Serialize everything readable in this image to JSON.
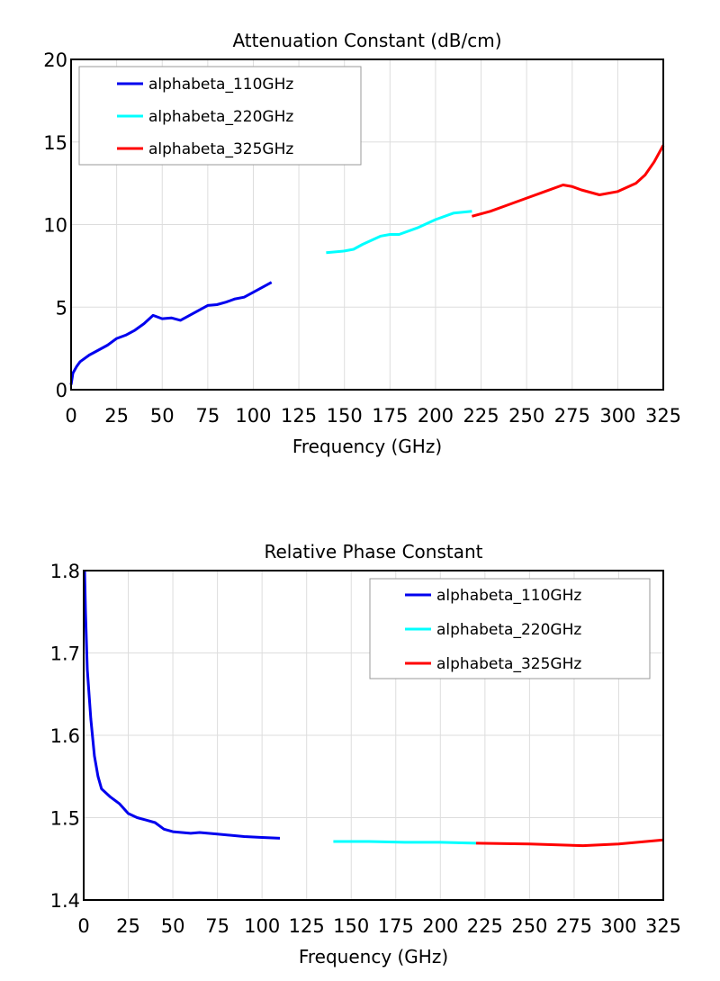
{
  "chart_data": [
    {
      "type": "line",
      "title": "Attenuation Constant (dB/cm)",
      "xlabel": "Frequency (GHz)",
      "ylabel": "",
      "xlim": [
        0,
        325
      ],
      "ylim": [
        0,
        20
      ],
      "xticks": [
        0,
        25,
        50,
        75,
        100,
        125,
        150,
        175,
        200,
        225,
        250,
        275,
        300,
        325
      ],
      "yticks": [
        0,
        5,
        10,
        15,
        20
      ],
      "grid": true,
      "legend_position": "top-left",
      "series": [
        {
          "name": "alphabeta_110GHz",
          "color": "#0000ee",
          "x": [
            0,
            1,
            3,
            5,
            10,
            15,
            20,
            25,
            30,
            35,
            40,
            45,
            50,
            55,
            60,
            65,
            70,
            75,
            80,
            85,
            90,
            95,
            100,
            105,
            110
          ],
          "y": [
            0.3,
            1.0,
            1.4,
            1.7,
            2.1,
            2.4,
            2.7,
            3.1,
            3.3,
            3.6,
            4.0,
            4.5,
            4.3,
            4.35,
            4.2,
            4.5,
            4.8,
            5.1,
            5.15,
            5.3,
            5.5,
            5.6,
            5.9,
            6.2,
            6.5
          ]
        },
        {
          "name": "alphabeta_220GHz",
          "color": "#00ffff",
          "x": [
            140,
            150,
            155,
            160,
            170,
            175,
            180,
            190,
            200,
            210,
            220
          ],
          "y": [
            8.3,
            8.4,
            8.5,
            8.8,
            9.3,
            9.4,
            9.4,
            9.8,
            10.3,
            10.7,
            10.8
          ]
        },
        {
          "name": "alphabeta_325GHz",
          "color": "#ff0000",
          "x": [
            220,
            230,
            240,
            250,
            260,
            270,
            275,
            280,
            290,
            300,
            310,
            315,
            320,
            325
          ],
          "y": [
            10.5,
            10.8,
            11.2,
            11.6,
            12.0,
            12.4,
            12.3,
            12.1,
            11.8,
            12.0,
            12.5,
            13.0,
            13.8,
            14.8
          ]
        }
      ]
    },
    {
      "type": "line",
      "title": "Relative Phase Constant",
      "xlabel": "Frequency (GHz)",
      "ylabel": "",
      "xlim": [
        0,
        325
      ],
      "ylim": [
        1.4,
        1.8
      ],
      "xticks": [
        0,
        25,
        50,
        75,
        100,
        125,
        150,
        175,
        200,
        225,
        250,
        275,
        300,
        325
      ],
      "yticks": [
        1.4,
        1.5,
        1.6,
        1.7,
        1.8
      ],
      "grid": true,
      "legend_position": "top-right",
      "series": [
        {
          "name": "alphabeta_110GHz",
          "color": "#0000ee",
          "x": [
            0.5,
            1,
            2,
            4,
            6,
            8,
            10,
            15,
            20,
            25,
            30,
            35,
            40,
            45,
            50,
            60,
            65,
            75,
            90,
            100,
            110
          ],
          "y": [
            1.8,
            1.75,
            1.68,
            1.62,
            1.575,
            1.55,
            1.535,
            1.525,
            1.517,
            1.505,
            1.5,
            1.497,
            1.494,
            1.486,
            1.483,
            1.481,
            1.482,
            1.48,
            1.477,
            1.476,
            1.475
          ]
        },
        {
          "name": "alphabeta_220GHz",
          "color": "#00ffff",
          "x": [
            140,
            160,
            180,
            200,
            220
          ],
          "y": [
            1.471,
            1.471,
            1.47,
            1.47,
            1.469
          ]
        },
        {
          "name": "alphabeta_325GHz",
          "color": "#ff0000",
          "x": [
            220,
            250,
            280,
            300,
            325
          ],
          "y": [
            1.469,
            1.468,
            1.466,
            1.468,
            1.473
          ]
        }
      ]
    }
  ]
}
